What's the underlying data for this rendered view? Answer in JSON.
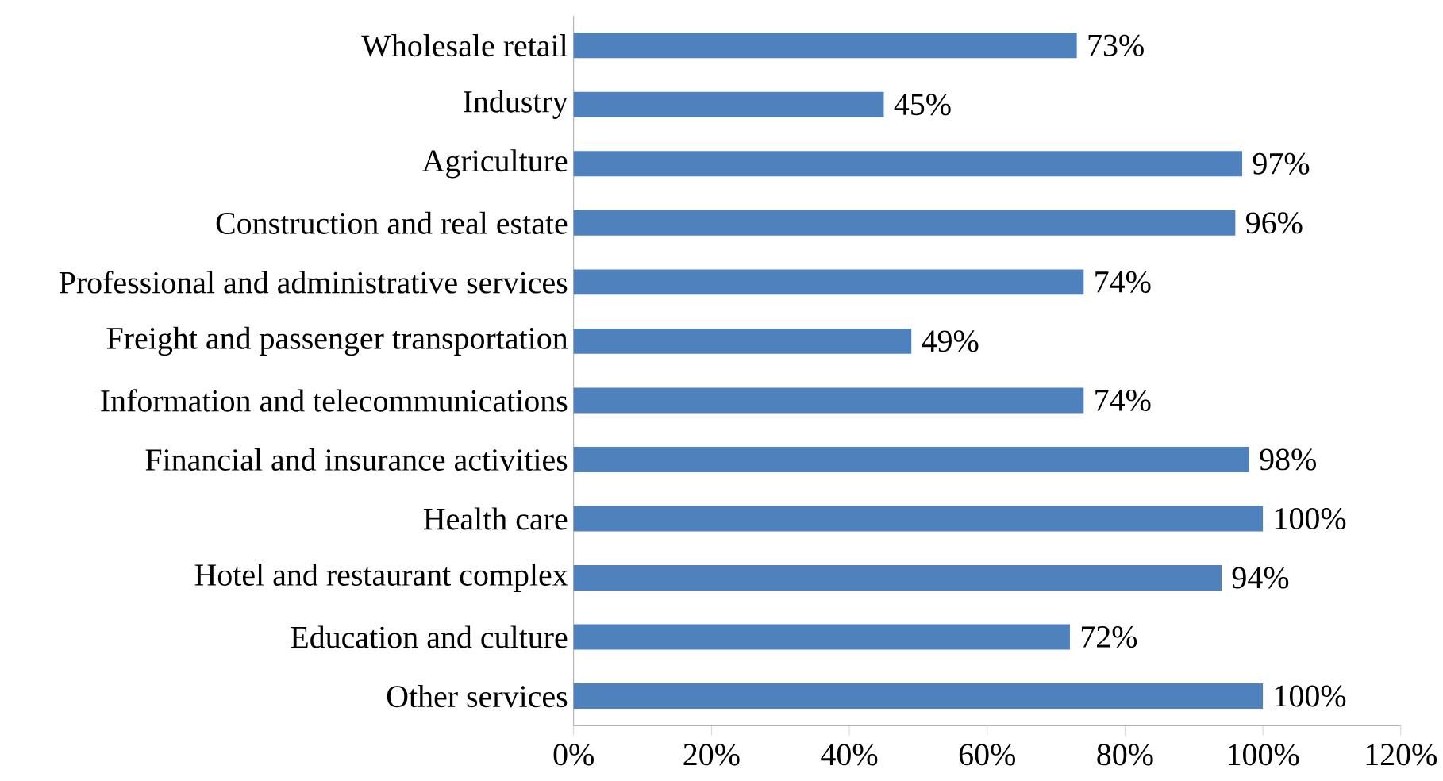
{
  "chart_data": {
    "type": "bar",
    "orientation": "horizontal",
    "categories": [
      "Wholesale retail",
      "Industry",
      "Agriculture",
      "Construction and real estate",
      "Professional and administrative services",
      "Freight and passenger transportation",
      "Information and telecommunications",
      "Financial and insurance activities",
      "Health care",
      "Hotel and restaurant complex",
      "Education and culture",
      "Other services"
    ],
    "values": [
      73,
      45,
      97,
      96,
      74,
      49,
      74,
      98,
      100,
      94,
      72,
      100
    ],
    "value_labels": [
      "73%",
      "45%",
      "97%",
      "96%",
      "74%",
      "49%",
      "74%",
      "98%",
      "100%",
      "94%",
      "72%",
      "100%"
    ],
    "color": "#4f81bd",
    "xlim": [
      0,
      120
    ],
    "xticks": [
      {
        "value": 0,
        "label": "0%"
      },
      {
        "value": 20,
        "label": "20%"
      },
      {
        "value": 40,
        "label": "40%"
      },
      {
        "value": 60,
        "label": "60%"
      },
      {
        "value": 80,
        "label": "80%"
      },
      {
        "value": 100,
        "label": "100%"
      },
      {
        "value": 120,
        "label": "120%"
      }
    ],
    "grid": false
  }
}
